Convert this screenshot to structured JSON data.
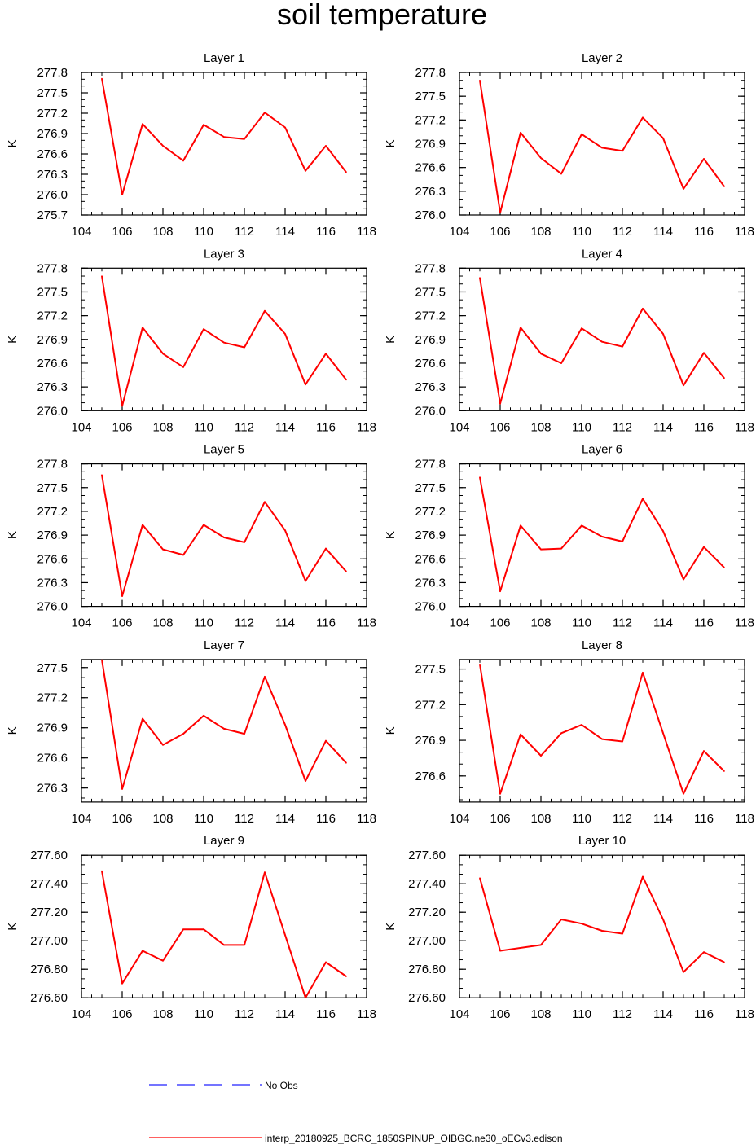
{
  "title": "soil temperature",
  "legend": {
    "no_obs": {
      "label": "No Obs",
      "color": "#2020ff"
    },
    "model": {
      "label": "interp_20180925_BCRC_1850SPINUP_OIBGC.ne30_oECv3.edison",
      "color": "#ff0000"
    }
  },
  "colors": {
    "line": "#ff0000",
    "axis": "#000000"
  },
  "chart_data": [
    {
      "type": "line",
      "title": "Layer 1",
      "ylabel": "K",
      "xlabel": "",
      "x": [
        105,
        106,
        107,
        108,
        109,
        110,
        111,
        112,
        113,
        114,
        115,
        116,
        117
      ],
      "values": [
        277.71,
        276.0,
        277.04,
        276.72,
        276.5,
        277.03,
        276.85,
        276.82,
        277.21,
        276.99,
        276.35,
        276.72,
        276.33
      ],
      "xlim": [
        104,
        118
      ],
      "xticks": [
        104,
        106,
        108,
        110,
        112,
        114,
        116,
        118
      ],
      "ylim": [
        275.7,
        277.8
      ],
      "yticks": [
        275.7,
        276.0,
        276.3,
        276.6,
        276.9,
        277.2,
        277.5,
        277.8
      ],
      "ydecimals": 1
    },
    {
      "type": "line",
      "title": "Layer 2",
      "ylabel": "K",
      "xlabel": "",
      "x": [
        105,
        106,
        107,
        108,
        109,
        110,
        111,
        112,
        113,
        114,
        115,
        116,
        117
      ],
      "values": [
        277.7,
        276.03,
        277.04,
        276.72,
        276.52,
        277.02,
        276.85,
        276.81,
        277.23,
        276.97,
        276.33,
        276.71,
        276.36
      ],
      "xlim": [
        104,
        118
      ],
      "xticks": [
        104,
        106,
        108,
        110,
        112,
        114,
        116,
        118
      ],
      "ylim": [
        276.0,
        277.8
      ],
      "yticks": [
        276.0,
        276.3,
        276.6,
        276.9,
        277.2,
        277.5,
        277.8
      ],
      "ydecimals": 1
    },
    {
      "type": "line",
      "title": "Layer 3",
      "ylabel": "K",
      "xlabel": "",
      "x": [
        105,
        106,
        107,
        108,
        109,
        110,
        111,
        112,
        113,
        114,
        115,
        116,
        117
      ],
      "values": [
        277.7,
        276.06,
        277.05,
        276.72,
        276.55,
        277.03,
        276.86,
        276.8,
        277.26,
        276.97,
        276.33,
        276.72,
        276.39
      ],
      "xlim": [
        104,
        118
      ],
      "xticks": [
        104,
        106,
        108,
        110,
        112,
        114,
        116,
        118
      ],
      "ylim": [
        276.0,
        277.8
      ],
      "yticks": [
        276.0,
        276.3,
        276.6,
        276.9,
        277.2,
        277.5,
        277.8
      ],
      "ydecimals": 1
    },
    {
      "type": "line",
      "title": "Layer 4",
      "ylabel": "K",
      "xlabel": "",
      "x": [
        105,
        106,
        107,
        108,
        109,
        110,
        111,
        112,
        113,
        114,
        115,
        116,
        117
      ],
      "values": [
        277.68,
        276.09,
        277.05,
        276.72,
        276.6,
        277.04,
        276.87,
        276.81,
        277.29,
        276.97,
        276.32,
        276.73,
        276.41
      ],
      "xlim": [
        104,
        118
      ],
      "xticks": [
        104,
        106,
        108,
        110,
        112,
        114,
        116,
        118
      ],
      "ylim": [
        276.0,
        277.8
      ],
      "yticks": [
        276.0,
        276.3,
        276.6,
        276.9,
        277.2,
        277.5,
        277.8
      ],
      "ydecimals": 1
    },
    {
      "type": "line",
      "title": "Layer 5",
      "ylabel": "K",
      "xlabel": "",
      "x": [
        105,
        106,
        107,
        108,
        109,
        110,
        111,
        112,
        113,
        114,
        115,
        116,
        117
      ],
      "values": [
        277.66,
        276.13,
        277.03,
        276.72,
        276.65,
        277.03,
        276.87,
        276.81,
        277.32,
        276.96,
        276.32,
        276.73,
        276.44
      ],
      "xlim": [
        104,
        118
      ],
      "xticks": [
        104,
        106,
        108,
        110,
        112,
        114,
        116,
        118
      ],
      "ylim": [
        276.0,
        277.8
      ],
      "yticks": [
        276.0,
        276.3,
        276.6,
        276.9,
        277.2,
        277.5,
        277.8
      ],
      "ydecimals": 1
    },
    {
      "type": "line",
      "title": "Layer 6",
      "ylabel": "K",
      "xlabel": "",
      "x": [
        105,
        106,
        107,
        108,
        109,
        110,
        111,
        112,
        113,
        114,
        115,
        116,
        117
      ],
      "values": [
        277.63,
        276.19,
        277.02,
        276.72,
        276.73,
        277.02,
        276.88,
        276.82,
        277.36,
        276.95,
        276.34,
        276.75,
        276.49
      ],
      "xlim": [
        104,
        118
      ],
      "xticks": [
        104,
        106,
        108,
        110,
        112,
        114,
        116,
        118
      ],
      "ylim": [
        276.0,
        277.8
      ],
      "yticks": [
        276.0,
        276.3,
        276.6,
        276.9,
        277.2,
        277.5,
        277.8
      ],
      "ydecimals": 1
    },
    {
      "type": "line",
      "title": "Layer 7",
      "ylabel": "K",
      "xlabel": "",
      "x": [
        105,
        106,
        107,
        108,
        109,
        110,
        111,
        112,
        113,
        114,
        115,
        116,
        117
      ],
      "values": [
        277.58,
        276.29,
        276.99,
        276.73,
        276.84,
        277.02,
        276.89,
        276.84,
        277.41,
        276.93,
        276.37,
        276.77,
        276.55
      ],
      "xlim": [
        104,
        118
      ],
      "xticks": [
        104,
        106,
        108,
        110,
        112,
        114,
        116,
        118
      ],
      "ylim": [
        276.16,
        277.58
      ],
      "yticks": [
        276.3,
        276.6,
        276.9,
        277.2,
        277.5
      ],
      "ydecimals": 1
    },
    {
      "type": "line",
      "title": "Layer 8",
      "ylabel": "K",
      "xlabel": "",
      "x": [
        105,
        106,
        107,
        108,
        109,
        110,
        111,
        112,
        113,
        114,
        115,
        116,
        117
      ],
      "values": [
        277.54,
        276.45,
        276.95,
        276.77,
        276.96,
        277.03,
        276.91,
        276.89,
        277.47,
        276.96,
        276.45,
        276.81,
        276.64
      ],
      "xlim": [
        104,
        118
      ],
      "xticks": [
        104,
        106,
        108,
        110,
        112,
        114,
        116,
        118
      ],
      "ylim": [
        276.38,
        277.58
      ],
      "yticks": [
        276.6,
        276.9,
        277.2,
        277.5
      ],
      "ydecimals": 1
    },
    {
      "type": "line",
      "title": "Layer 9",
      "ylabel": "K",
      "xlabel": "",
      "x": [
        105,
        106,
        107,
        108,
        109,
        110,
        111,
        112,
        113,
        114,
        115,
        116,
        117
      ],
      "values": [
        277.49,
        276.7,
        276.93,
        276.86,
        277.08,
        277.08,
        276.97,
        276.97,
        277.48,
        277.04,
        276.6,
        276.85,
        276.75
      ],
      "xlim": [
        104,
        118
      ],
      "xticks": [
        104,
        106,
        108,
        110,
        112,
        114,
        116,
        118
      ],
      "ylim": [
        276.6,
        277.6
      ],
      "yticks": [
        276.6,
        276.8,
        277.0,
        277.2,
        277.4,
        277.6
      ],
      "ydecimals": 2
    },
    {
      "type": "line",
      "title": "Layer 10",
      "ylabel": "K",
      "xlabel": "",
      "x": [
        105,
        106,
        108,
        109,
        110,
        111,
        112,
        113,
        114,
        115,
        116,
        117
      ],
      "values": [
        277.44,
        276.93,
        276.97,
        277.15,
        277.12,
        277.07,
        277.05,
        277.45,
        277.15,
        276.78,
        276.92,
        276.85
      ],
      "xlim": [
        104,
        118
      ],
      "xticks": [
        104,
        106,
        108,
        110,
        112,
        114,
        116,
        118
      ],
      "ylim": [
        276.6,
        277.6
      ],
      "yticks": [
        276.6,
        276.8,
        277.0,
        277.2,
        277.4,
        277.6
      ],
      "ydecimals": 2
    }
  ]
}
